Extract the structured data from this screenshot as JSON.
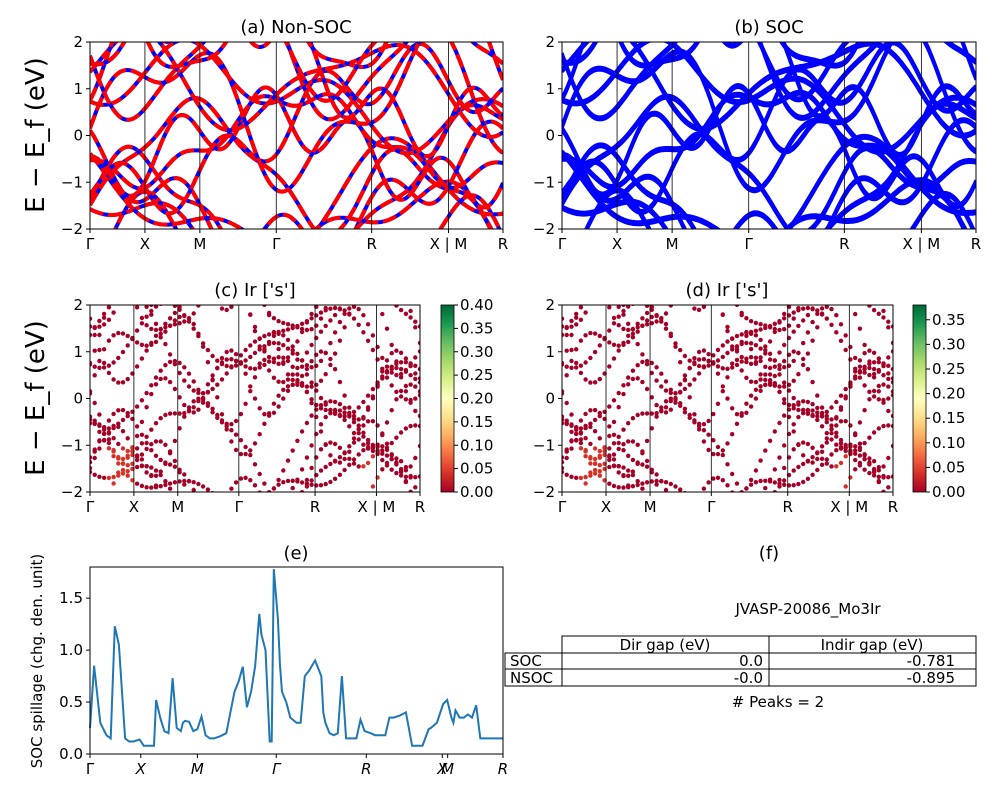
{
  "chart_data": [
    {
      "id": "a",
      "type": "line",
      "title": "(a) Non-SOC",
      "ylabel": "E − E_f (eV)",
      "ylim": [
        -2,
        2
      ],
      "yticks": [
        "−2",
        "−1",
        "0",
        "1",
        "2"
      ],
      "kpath": [
        "Γ",
        "X",
        "M",
        "Γ",
        "R",
        "X | M",
        "R"
      ],
      "series_colors": [
        "#ff0000",
        "#0000ff"
      ]
    },
    {
      "id": "b",
      "type": "line",
      "title": "(b) SOC",
      "ylim": [
        -2,
        2
      ],
      "yticks": [
        "−2",
        "−1",
        "0",
        "1",
        "2"
      ],
      "kpath": [
        "Γ",
        "X",
        "M",
        "Γ",
        "R",
        "X | M",
        "R"
      ],
      "series_colors": [
        "#0000ff"
      ]
    },
    {
      "id": "c",
      "type": "scatter",
      "title": "(c)  Ir ['s']",
      "ylabel": "E − E_f (eV)",
      "ylim": [
        -2,
        2
      ],
      "yticks": [
        "−2",
        "−1",
        "0",
        "1",
        "2"
      ],
      "kpath": [
        "Γ",
        "X",
        "M",
        "Γ",
        "R",
        "X | M",
        "R"
      ],
      "colorbar": {
        "range": [
          0,
          0.4
        ],
        "ticks": [
          "0.00",
          "0.05",
          "0.10",
          "0.15",
          "0.20",
          "0.25",
          "0.30",
          "0.35",
          "0.40"
        ]
      },
      "point_color": "#a50026"
    },
    {
      "id": "d",
      "type": "scatter",
      "title": "(d) Ir ['s']",
      "ylim": [
        -2,
        2
      ],
      "yticks": [
        "−2",
        "−1",
        "0",
        "1",
        "2"
      ],
      "kpath": [
        "Γ",
        "X",
        "M",
        "Γ",
        "R",
        "X | M",
        "R"
      ],
      "colorbar": {
        "range": [
          0,
          0.38
        ],
        "ticks": [
          "0.00",
          "0.05",
          "0.10",
          "0.15",
          "0.20",
          "0.25",
          "0.30",
          "0.35"
        ]
      },
      "point_color": "#a50026"
    },
    {
      "id": "e",
      "type": "line",
      "title": "(e)",
      "ylabel": "SOC spillage (chg. den. unit)",
      "ylim": [
        0,
        1.8
      ],
      "yticks": [
        "0.0",
        "0.5",
        "1.0",
        "1.5"
      ],
      "kpath": [
        "Γ",
        "X",
        "M",
        "Γ",
        "R",
        "X",
        "M",
        "R"
      ],
      "series": [
        {
          "color": "#1f77b4",
          "x": [
            0,
            0.01,
            0.025,
            0.04,
            0.05,
            0.06,
            0.07,
            0.085,
            0.095,
            0.105,
            0.12,
            0.13,
            0.14,
            0.155,
            0.16,
            0.17,
            0.18,
            0.19,
            0.2,
            0.21,
            0.22,
            0.225,
            0.23,
            0.24,
            0.25,
            0.26,
            0.27,
            0.28,
            0.29,
            0.3,
            0.315,
            0.33,
            0.35,
            0.36,
            0.37,
            0.38,
            0.39,
            0.4,
            0.41,
            0.415,
            0.425,
            0.435,
            0.44,
            0.445,
            0.455,
            0.46,
            0.465,
            0.475,
            0.485,
            0.5,
            0.51,
            0.52,
            0.53,
            0.545,
            0.56,
            0.565,
            0.57,
            0.58,
            0.59,
            0.6,
            0.61,
            0.62,
            0.635,
            0.645,
            0.655,
            0.665,
            0.68,
            0.69,
            0.7,
            0.705,
            0.715,
            0.725,
            0.735,
            0.75,
            0.765,
            0.78,
            0.79,
            0.805,
            0.82,
            0.825,
            0.84,
            0.855,
            0.865,
            0.875,
            0.88,
            0.885,
            0.895,
            0.905,
            0.915,
            0.925,
            0.935,
            0.945,
            0.955,
            0.965,
            0.975,
            0.985,
            0.995,
            1.0
          ],
          "y": [
            0.25,
            0.85,
            0.3,
            0.18,
            0.15,
            1.23,
            1.05,
            0.15,
            0.12,
            0.12,
            0.14,
            0.08,
            0.08,
            0.08,
            0.52,
            0.35,
            0.22,
            0.2,
            0.73,
            0.25,
            0.22,
            0.3,
            0.32,
            0.31,
            0.22,
            0.24,
            0.36,
            0.18,
            0.15,
            0.15,
            0.17,
            0.2,
            0.6,
            0.7,
            0.84,
            0.45,
            0.6,
            0.85,
            1.35,
            1.15,
            1.0,
            0.12,
            0.12,
            1.78,
            1.3,
            0.85,
            0.6,
            0.5,
            0.35,
            0.3,
            0.3,
            0.75,
            0.8,
            0.9,
            0.75,
            0.4,
            0.3,
            0.2,
            0.18,
            0.2,
            0.75,
            0.15,
            0.15,
            0.15,
            0.33,
            0.22,
            0.2,
            0.18,
            0.18,
            0.18,
            0.18,
            0.35,
            0.35,
            0.37,
            0.4,
            0.08,
            0.08,
            0.08,
            0.24,
            0.25,
            0.3,
            0.48,
            0.52,
            0.35,
            0.3,
            0.42,
            0.35,
            0.35,
            0.38,
            0.35,
            0.47,
            0.15,
            0.15,
            0.15,
            0.15,
            0.15,
            0.15,
            0.15
          ]
        }
      ]
    }
  ],
  "panel_f": {
    "label": "(f)",
    "material": "JVASP-20086_Mo3Ir",
    "headers": [
      "",
      "Dir gap (eV)",
      "Indir gap (eV)"
    ],
    "rows": [
      {
        "name": "SOC",
        "dir": "0.0",
        "indir": "-0.781"
      },
      {
        "name": "NSOC",
        "dir": "-0.0",
        "indir": "-0.895"
      }
    ],
    "peaks": "# Peaks = 2"
  }
}
